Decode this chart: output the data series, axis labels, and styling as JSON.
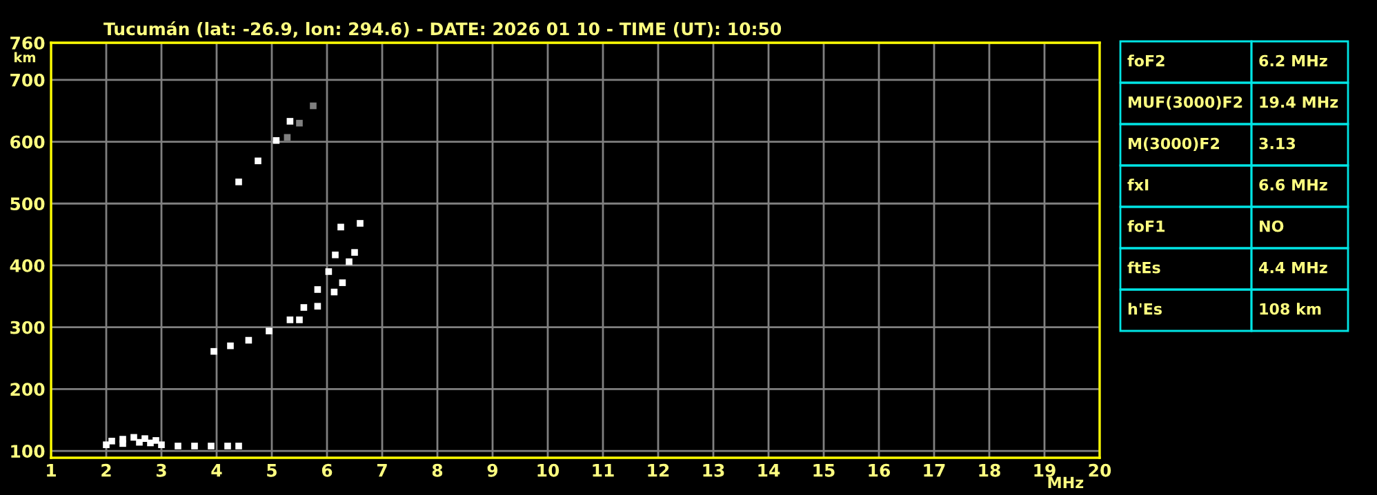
{
  "chart_data": {
    "type": "scatter",
    "title": "Tucumán (lat: -26.9, lon: 294.6) - DATE: 2026 01 10 - TIME (UT): 10:50",
    "xlabel": "MHz",
    "ylabel": "km",
    "xlim": [
      1,
      20
    ],
    "xticks": [
      1,
      2,
      3,
      4,
      5,
      6,
      7,
      8,
      9,
      10,
      11,
      12,
      13,
      14,
      15,
      16,
      17,
      18,
      19,
      20
    ],
    "ylim": [
      89,
      760
    ],
    "yticks": [
      100,
      200,
      300,
      400,
      500,
      600,
      700,
      760
    ],
    "grid": true,
    "marker": "square",
    "series": [
      {
        "color": "#ffffff",
        "x": [
          2.0,
          2.3,
          2.6,
          2.8,
          3.0,
          3.3,
          3.6,
          3.9,
          4.2,
          4.4
        ],
        "values": [
          110,
          112,
          114,
          113,
          110,
          108,
          108,
          108,
          108,
          108
        ]
      },
      {
        "color": "#ffffff",
        "x": [
          2.1,
          2.3,
          2.5,
          2.7,
          2.9
        ],
        "values": [
          116,
          119,
          122,
          120,
          117
        ]
      },
      {
        "color": "#ffffff",
        "x": [
          3.95,
          4.25,
          4.58,
          4.95,
          5.33,
          5.58,
          5.83,
          6.03,
          6.15,
          6.25
        ],
        "values": [
          261,
          270,
          279,
          294,
          312,
          332,
          361,
          390,
          417,
          462
        ]
      },
      {
        "color": "#ffffff",
        "x": [
          5.5,
          5.83,
          6.13,
          6.28,
          6.4,
          6.5,
          6.6
        ],
        "values": [
          312,
          334,
          357,
          372,
          406,
          421,
          468
        ]
      },
      {
        "color": "#ffffff",
        "x": [
          4.4,
          4.75,
          5.08,
          5.33
        ],
        "values": [
          535,
          569,
          602,
          633
        ]
      },
      {
        "color": "#808080",
        "x": [
          5.28,
          5.5,
          5.75
        ],
        "values": [
          607,
          630,
          658
        ]
      }
    ],
    "annotations": [
      "foF2",
      "6.2 MHz",
      "MUF(3000)F2",
      "19.4 MHz",
      "M(3000)F2",
      "3.13",
      "fxI",
      "6.6 MHz",
      "foF1",
      "NO",
      "ftEs",
      "4.4 MHz",
      "h'Es",
      "108 km"
    ]
  }
}
